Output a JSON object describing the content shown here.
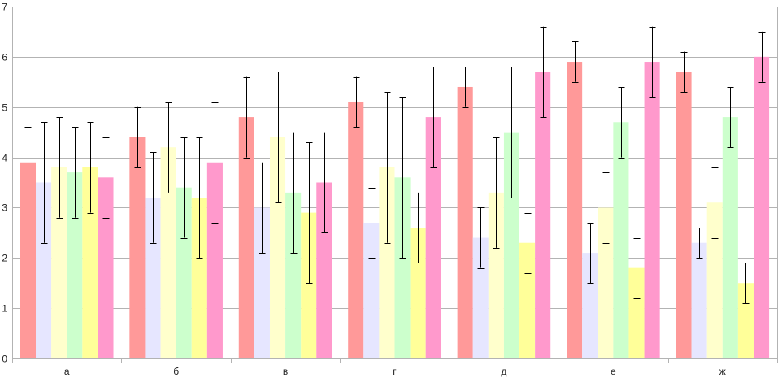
{
  "chart_data": {
    "type": "bar",
    "categories": [
      "а",
      "б",
      "в",
      "г",
      "д",
      "е",
      "ж"
    ],
    "ylim": [
      0,
      7
    ],
    "yticks": [
      0,
      1,
      2,
      3,
      4,
      5,
      6,
      7
    ],
    "grid": true,
    "legend": "none",
    "series": [
      {
        "color": "#ff9999",
        "values": [
          3.9,
          4.4,
          4.8,
          5.1,
          5.4,
          5.9,
          5.7
        ],
        "err_low": [
          3.2,
          3.8,
          4.0,
          4.6,
          5.0,
          5.5,
          5.3
        ],
        "err_high": [
          4.6,
          5.0,
          5.6,
          5.6,
          5.8,
          6.3,
          6.1
        ]
      },
      {
        "color": "#e6e6ff",
        "values": [
          3.5,
          3.2,
          3.0,
          2.7,
          2.4,
          2.1,
          2.3
        ],
        "err_low": [
          2.3,
          2.3,
          2.1,
          2.0,
          1.8,
          1.5,
          2.0
        ],
        "err_high": [
          4.7,
          4.1,
          3.9,
          3.4,
          3.0,
          2.7,
          2.6
        ]
      },
      {
        "color": "#ffffcc",
        "values": [
          3.8,
          4.2,
          4.4,
          3.8,
          3.3,
          3.0,
          3.1
        ],
        "err_low": [
          2.8,
          3.3,
          3.1,
          2.3,
          2.2,
          2.3,
          2.4
        ],
        "err_high": [
          4.8,
          5.1,
          5.7,
          5.3,
          4.4,
          3.7,
          3.8
        ]
      },
      {
        "color": "#ccffcc",
        "values": [
          3.7,
          3.4,
          3.3,
          3.6,
          4.5,
          4.7,
          4.8
        ],
        "err_low": [
          2.8,
          2.4,
          2.1,
          2.0,
          3.2,
          4.0,
          4.2
        ],
        "err_high": [
          4.6,
          4.4,
          4.5,
          5.2,
          5.8,
          5.4,
          5.4
        ]
      },
      {
        "color": "#ffff99",
        "values": [
          3.8,
          3.2,
          2.9,
          2.6,
          2.3,
          1.8,
          1.5
        ],
        "err_low": [
          2.9,
          2.0,
          1.5,
          1.9,
          1.7,
          1.2,
          1.1
        ],
        "err_high": [
          4.7,
          4.4,
          4.3,
          3.3,
          2.9,
          2.4,
          1.9
        ]
      },
      {
        "color": "#ff99cc",
        "values": [
          3.6,
          3.9,
          3.5,
          4.8,
          5.7,
          5.9,
          6.0
        ],
        "err_low": [
          2.8,
          2.7,
          2.5,
          3.8,
          4.8,
          5.2,
          5.5
        ],
        "err_high": [
          4.4,
          5.1,
          4.5,
          5.8,
          6.6,
          6.6,
          6.5
        ]
      }
    ]
  }
}
